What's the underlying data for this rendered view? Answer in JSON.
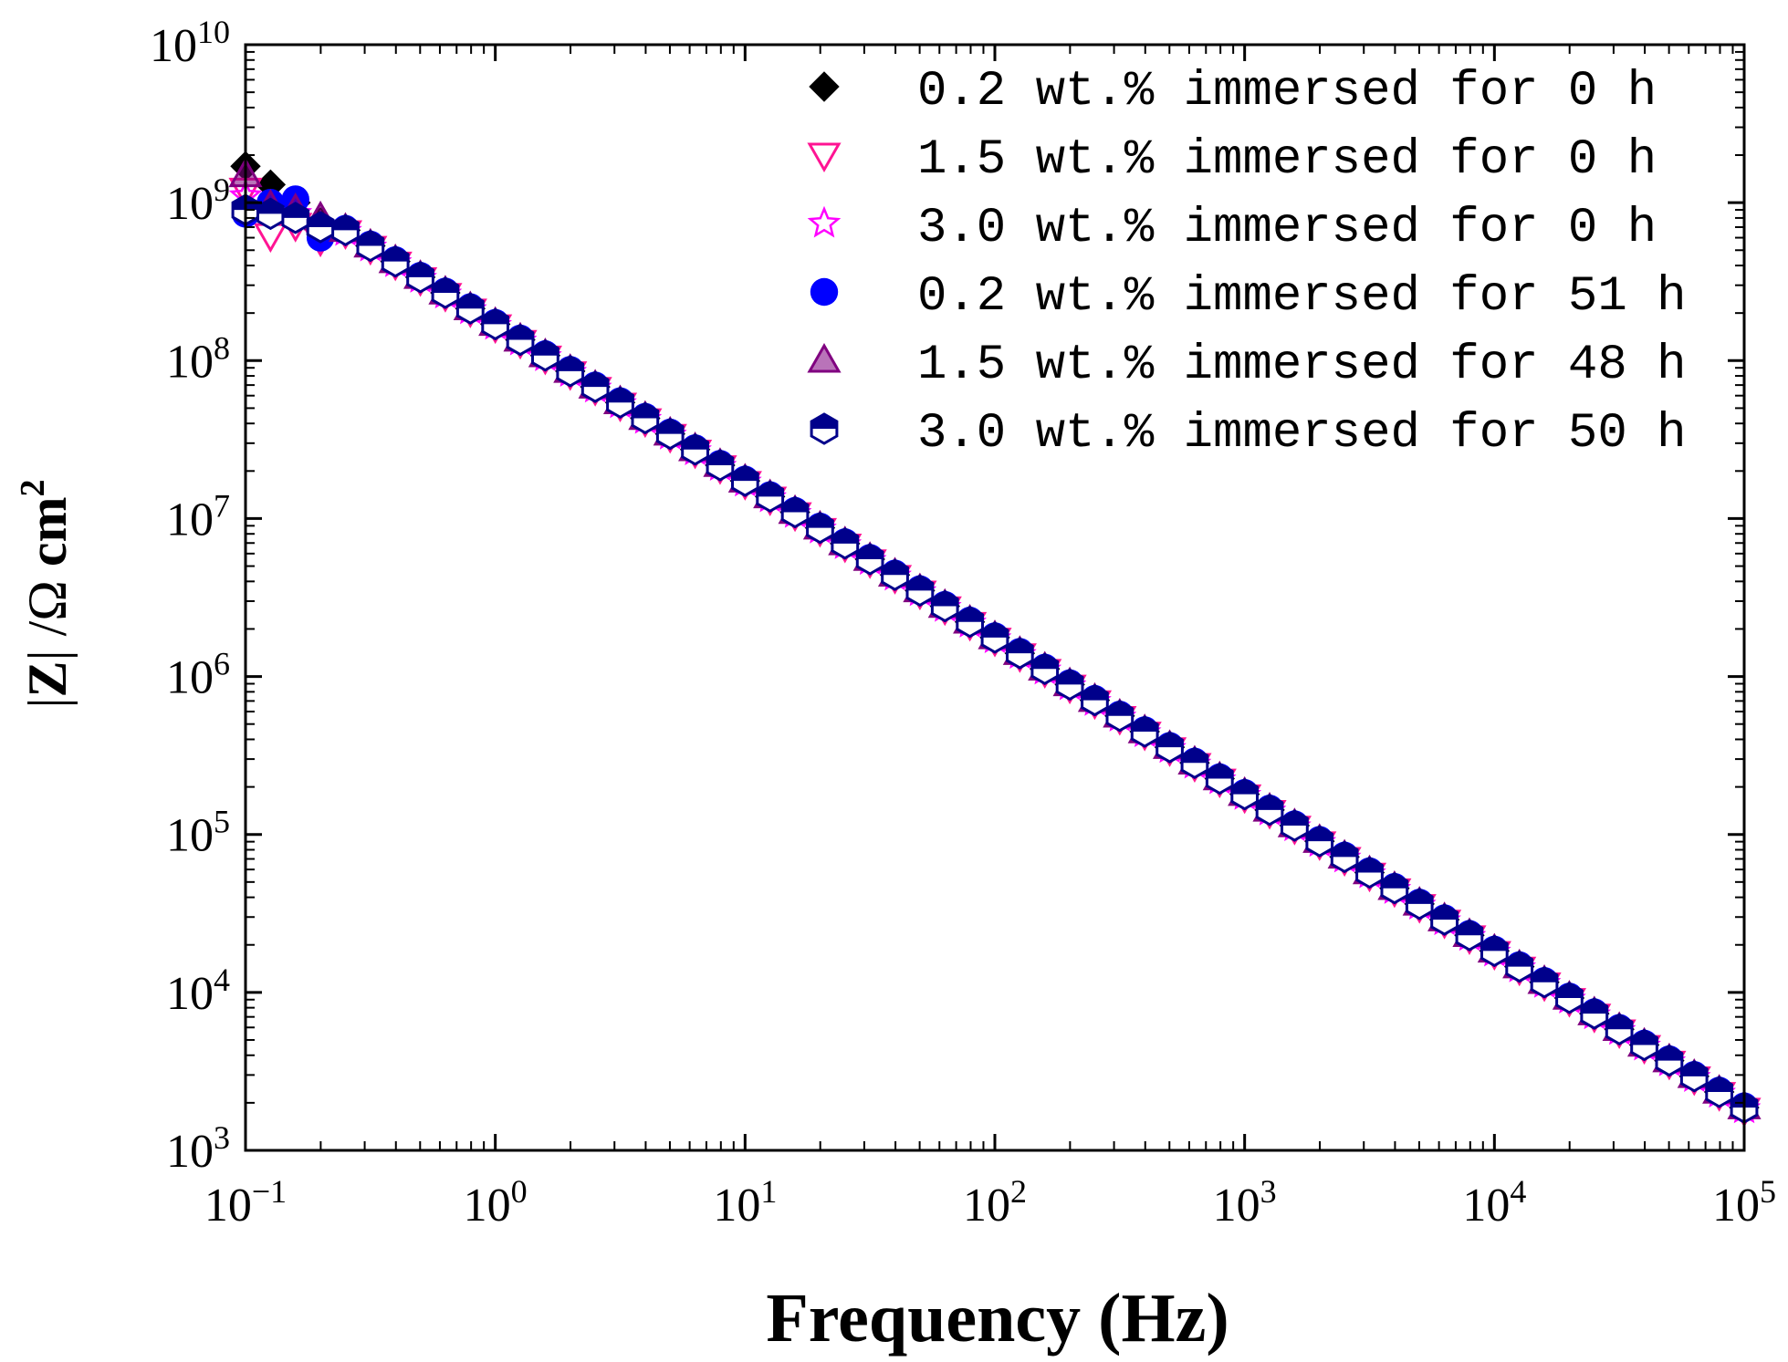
{
  "chart_data": {
    "type": "scatter",
    "title": "",
    "xlabel": "Frequency (Hz)",
    "ylabel_parts": [
      "|",
      "Z",
      "|",
      " /Ω ",
      "cm",
      "2"
    ],
    "x_scale": "log",
    "y_scale": "log",
    "xlim": [
      0.1,
      100000
    ],
    "ylim": [
      1000,
      10000000000
    ],
    "x_ticks": [
      {
        "base": "10",
        "exp": "−1"
      },
      {
        "base": "10",
        "exp": "0"
      },
      {
        "base": "10",
        "exp": "1"
      },
      {
        "base": "10",
        "exp": "2"
      },
      {
        "base": "10",
        "exp": "3"
      },
      {
        "base": "10",
        "exp": "4"
      },
      {
        "base": "10",
        "exp": "5"
      }
    ],
    "y_ticks": [
      {
        "base": "10",
        "exp": "3"
      },
      {
        "base": "10",
        "exp": "4"
      },
      {
        "base": "10",
        "exp": "5"
      },
      {
        "base": "10",
        "exp": "6"
      },
      {
        "base": "10",
        "exp": "7"
      },
      {
        "base": "10",
        "exp": "8"
      },
      {
        "base": "10",
        "exp": "9"
      },
      {
        "base": "10",
        "exp": "10"
      }
    ],
    "trend": {
      "intercept_at_1Hz": 170000000,
      "slope_log": -0.992,
      "f_min": 0.1,
      "f_max": 90000,
      "points_per_decade": 10
    },
    "legend_position": "top-right",
    "series": [
      {
        "name": "0.2 wt.% immersed for 0 h",
        "marker": "diamond",
        "color": "#000000",
        "low_freq": [
          [
            0.1,
            1700000000
          ],
          [
            0.126,
            1300000000
          ],
          [
            0.158,
            1000000000
          ],
          [
            0.2,
            750000000
          ]
        ]
      },
      {
        "name": "1.5 wt.% immersed for 0 h",
        "marker": "triangle-down",
        "color": "#ff1493",
        "low_freq": [
          [
            0.1,
            1200000000
          ],
          [
            0.126,
            620000000
          ],
          [
            0.158,
            720000000
          ],
          [
            0.2,
            580000000
          ]
        ]
      },
      {
        "name": "3.0 wt.% immersed for 0 h",
        "marker": "star",
        "color": "#ff00ff",
        "low_freq": [
          [
            0.1,
            1100000000
          ],
          [
            0.126,
            900000000
          ],
          [
            0.158,
            850000000
          ],
          [
            0.2,
            700000000
          ]
        ]
      },
      {
        "name": "0.2 wt.% immersed for 51 h",
        "marker": "circle",
        "color": "#0000ff",
        "low_freq": [
          [
            0.1,
            850000000
          ],
          [
            0.126,
            1000000000
          ],
          [
            0.158,
            1050000000
          ],
          [
            0.2,
            600000000
          ]
        ]
      },
      {
        "name": "1.5 wt.% immersed for 48 h",
        "marker": "triangle-up",
        "color": "#800080",
        "low_freq": [
          [
            0.1,
            1500000000
          ],
          [
            0.126,
            950000000
          ],
          [
            0.158,
            900000000
          ],
          [
            0.2,
            800000000
          ]
        ]
      },
      {
        "name": "3.0 wt.% immersed for 50 h",
        "marker": "hexagon-half",
        "color": "#00008b",
        "low_freq": [
          [
            0.1,
            900000000
          ],
          [
            0.126,
            850000000
          ],
          [
            0.158,
            800000000
          ],
          [
            0.2,
            700000000
          ]
        ]
      }
    ]
  }
}
